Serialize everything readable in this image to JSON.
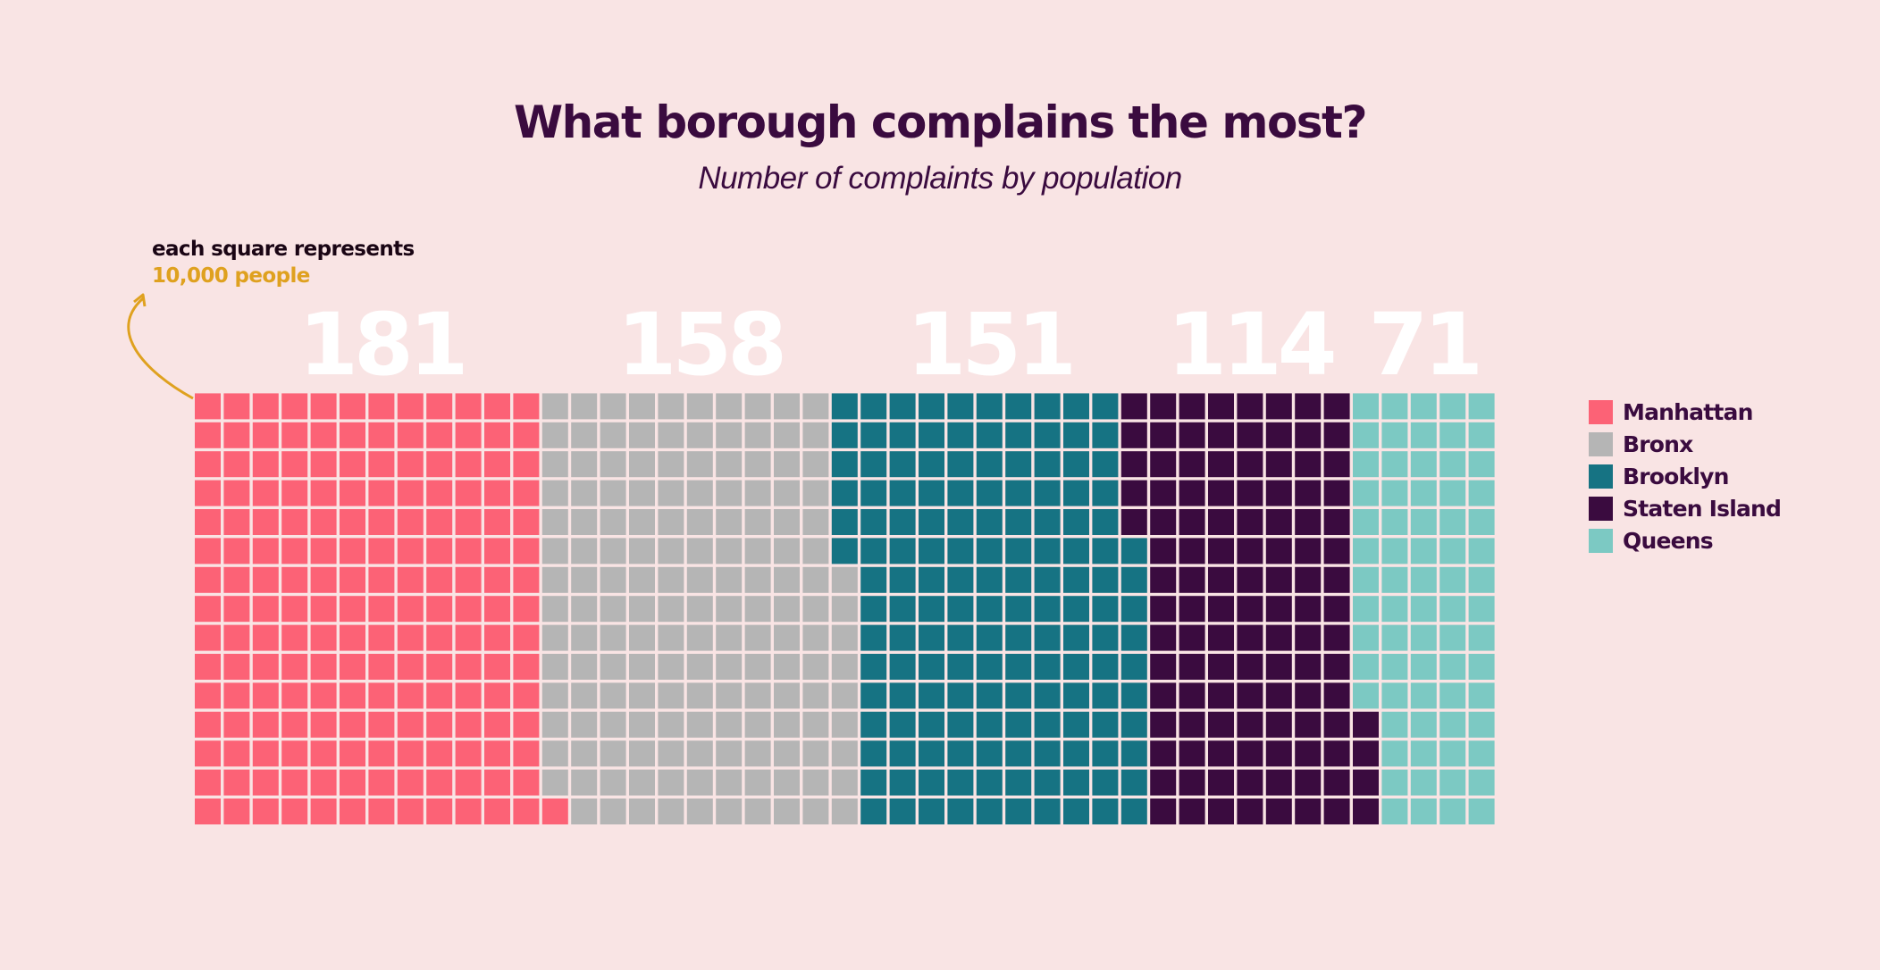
{
  "header": {
    "title": "What borough complains the most?",
    "subtitle": "Number of complaints by population"
  },
  "note": {
    "line1": "each square represents",
    "line2": "10,000 people",
    "accent_color": "#dfa11f"
  },
  "chart_data": {
    "type": "waffle",
    "title": "What borough complains the most?",
    "subtitle": "Number of complaints by population",
    "unit": "each square represents 10,000 people",
    "rows": 15,
    "fill_order": "column-wise, bottom to top, left to right",
    "grid": false,
    "legend_position": "right",
    "background": "#f9e4e4",
    "categories": [
      "Manhattan",
      "Bronx",
      "Brooklyn",
      "Staten Island",
      "Queens"
    ],
    "series": [
      {
        "name": "Manhattan",
        "value": 181,
        "color": "#fc6276"
      },
      {
        "name": "Bronx",
        "value": 158,
        "color": "#b5b5b5"
      },
      {
        "name": "Brooklyn",
        "value": 151,
        "color": "#167383"
      },
      {
        "name": "Staten Island",
        "value": 114,
        "color": "#3a0b3f"
      },
      {
        "name": "Queens",
        "value": 71,
        "color": "#7cc9c3"
      }
    ],
    "value_labels": [
      "181",
      "158",
      "151",
      "114",
      "71"
    ]
  },
  "legend": {
    "items": [
      {
        "label": "Manhattan",
        "color": "#fc6276"
      },
      {
        "label": "Bronx",
        "color": "#b5b5b5"
      },
      {
        "label": "Brooklyn",
        "color": "#167383"
      },
      {
        "label": "Staten Island",
        "color": "#3a0b3f"
      },
      {
        "label": "Queens",
        "color": "#7cc9c3"
      }
    ]
  }
}
